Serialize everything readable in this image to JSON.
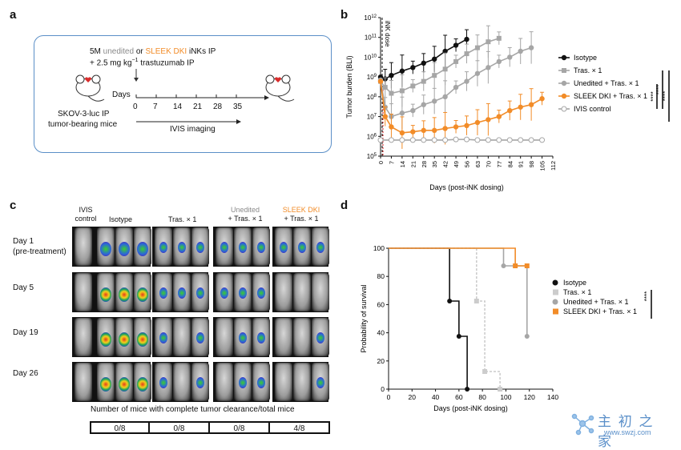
{
  "panel_a": {
    "letter": "a",
    "line1_pre": "5M ",
    "line1_unedited": "unedited",
    "line1_or": " or ",
    "line1_sleek": "SLEEK DKI",
    "line1_post": " iNKs IP",
    "line2": "+ 2.5 mg kg",
    "line2_sup": "−1",
    "line2_post": " trastuzumab IP",
    "days_label": "Days",
    "days": [
      "0",
      "7",
      "14",
      "21",
      "28",
      "35"
    ],
    "ivis_label": "IVIS imaging",
    "mouse_label_1": "SKOV-3-luc IP",
    "mouse_label_2": "tumor-bearing mice"
  },
  "panel_b": {
    "letter": "b",
    "chart_data": {
      "type": "line",
      "ylabel": "Tumor burden (BLI)",
      "xlabel": "Days (post-iNK dosing)",
      "yscale": "log",
      "ylim": [
        100000,
        1000000000000
      ],
      "ytick_labels": [
        "10^5",
        "10^6",
        "10^7",
        "10^8",
        "10^9",
        "10^10",
        "10^11",
        "10^12"
      ],
      "xticks": [
        0,
        7,
        14,
        21,
        28,
        35,
        42,
        49,
        56,
        63,
        70,
        77,
        84,
        91,
        98,
        105,
        112
      ],
      "annotation": "iNK dose",
      "significance": [
        "****",
        "****",
        "****"
      ],
      "series": [
        {
          "name": "Isotype",
          "color": "#111111",
          "marker": "circle-filled",
          "x": [
            0,
            3,
            7,
            14,
            21,
            28,
            35,
            42,
            49,
            56
          ],
          "y": [
            1000000000,
            800000000,
            1200000000,
            2000000000,
            3000000000,
            5000000000,
            8000000000,
            20000000000,
            40000000000,
            80000000000
          ]
        },
        {
          "name": "Tras. × 1",
          "color": "#a6a6a6",
          "marker": "square-filled",
          "x": [
            0,
            3,
            7,
            14,
            21,
            28,
            35,
            42,
            49,
            56,
            63,
            70,
            77
          ],
          "y": [
            600000000,
            300000000,
            150000000,
            200000000,
            350000000,
            600000000,
            1200000000,
            2500000000,
            6000000000,
            15000000000,
            30000000000,
            60000000000,
            90000000000
          ]
        },
        {
          "name": "Unedited + Tras. × 1",
          "color": "#a6a6a6",
          "marker": "circle-filled",
          "x": [
            0,
            3,
            7,
            14,
            21,
            28,
            35,
            42,
            49,
            56,
            63,
            70,
            77,
            84,
            91,
            98
          ],
          "y": [
            700000000,
            30000000,
            10000000,
            15000000,
            20000000,
            40000000,
            60000000,
            100000000,
            300000000,
            600000000,
            1500000000,
            3000000000,
            6000000000,
            10000000000,
            20000000000,
            30000000000
          ]
        },
        {
          "name": "SLEEK DKI + Tras. × 1",
          "color": "#f28c28",
          "marker": "circle-filled",
          "x": [
            0,
            3,
            7,
            14,
            21,
            28,
            35,
            42,
            49,
            56,
            63,
            70,
            77,
            84,
            91,
            98,
            105
          ],
          "y": [
            600000000,
            10000000,
            3000000,
            1500000,
            1700000,
            2000000,
            2000000,
            2500000,
            3000000,
            3500000,
            5000000,
            7000000,
            10000000,
            20000000,
            30000000,
            40000000,
            80000000
          ]
        },
        {
          "name": "IVIS control",
          "color": "#a6a6a6",
          "marker": "circle-open",
          "x": [
            0,
            7,
            14,
            21,
            28,
            35,
            42,
            49,
            56,
            63,
            70,
            77,
            84,
            91,
            98,
            105
          ],
          "y": [
            650000,
            650000,
            650000,
            650000,
            650000,
            650000,
            650000,
            700000,
            700000,
            650000,
            650000,
            650000,
            650000,
            650000,
            650000,
            650000
          ]
        }
      ]
    }
  },
  "panel_c": {
    "letter": "c",
    "col_ivis": [
      "IVIS",
      "control"
    ],
    "col_isotype": "Isotype",
    "col_tras": "Tras. × 1",
    "col_unedited": [
      "Unedited",
      "+ Tras. × 1"
    ],
    "col_sleek": [
      "SLEEK DKI",
      "+ Tras. × 1"
    ],
    "rows": [
      "Day 1",
      "(pre-treatment)",
      "Day 5",
      "Day 19",
      "Day 26"
    ],
    "clearance_label": "Number of mice with complete tumor clearance/total mice",
    "clearance": [
      "0/8",
      "0/8",
      "0/8",
      "4/8"
    ]
  },
  "panel_d": {
    "letter": "d",
    "chart_data": {
      "type": "line",
      "ylabel": "Probability of survival",
      "xlabel": "Days (post-iNK dosing)",
      "xlim": [
        0,
        140
      ],
      "ylim": [
        0,
        100
      ],
      "xticks": [
        0,
        20,
        40,
        60,
        80,
        100,
        120,
        140
      ],
      "yticks": [
        0,
        20,
        40,
        60,
        80,
        100
      ],
      "significance": "****",
      "series": [
        {
          "name": "Isotype",
          "color": "#111111",
          "x": [
            0,
            52,
            52,
            60,
            60,
            67,
            67
          ],
          "y": [
            100,
            100,
            62.5,
            62.5,
            37.5,
            37.5,
            0
          ]
        },
        {
          "name": "Tras. × 1",
          "color": "#cccccc",
          "x": [
            0,
            75,
            75,
            82,
            82,
            95,
            95
          ],
          "y": [
            100,
            100,
            62.5,
            62.5,
            12.5,
            12.5,
            0
          ]
        },
        {
          "name": "Unedited + Tras. × 1",
          "color": "#a6a6a6",
          "x": [
            0,
            98,
            98,
            118,
            118
          ],
          "y": [
            100,
            100,
            87.5,
            87.5,
            37.5
          ]
        },
        {
          "name": "SLEEK DKI + Tras. × 1",
          "color": "#f28c28",
          "x": [
            0,
            108,
            108,
            118
          ],
          "y": [
            100,
            100,
            87.5,
            87.5
          ]
        }
      ]
    }
  },
  "watermark": {
    "text": "主 初 之 家",
    "url": "www.swzj.com"
  },
  "colors": {
    "orange": "#f28c28",
    "gray": "#a6a6a6",
    "black": "#111111",
    "box_border": "#5b8fc7"
  }
}
